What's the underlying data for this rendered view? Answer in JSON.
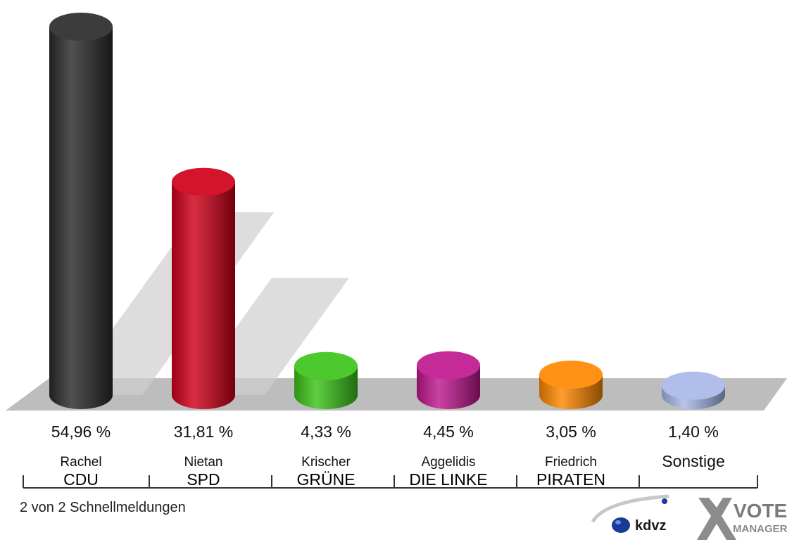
{
  "chart_data": {
    "type": "bar",
    "categories": [
      "CDU",
      "SPD",
      "GRÜNE",
      "DIE LINKE",
      "PIRATEN",
      "Sonstige"
    ],
    "candidates": [
      "Rachel",
      "Nietan",
      "Krischer",
      "Aggelidis",
      "Friedrich",
      ""
    ],
    "values": [
      54.96,
      31.81,
      4.33,
      4.45,
      3.05,
      1.4
    ],
    "value_labels": [
      "54,96 %",
      "31,81 %",
      "4,33 %",
      "4,45 %",
      "3,05 %",
      "1,40 %"
    ],
    "colors": [
      "#2b2b2b",
      "#d0001a",
      "#3cc41a",
      "#c01890",
      "#ff8800",
      "#a8b8e8"
    ],
    "ylim": [
      0,
      54.96
    ],
    "grid": false,
    "legend": "none"
  },
  "footer": {
    "text": "2 von 2 Schnellmeldungen"
  },
  "logos": {
    "kdvz": "kdvz",
    "vote": "VOTE",
    "manager": "MANAGER"
  }
}
